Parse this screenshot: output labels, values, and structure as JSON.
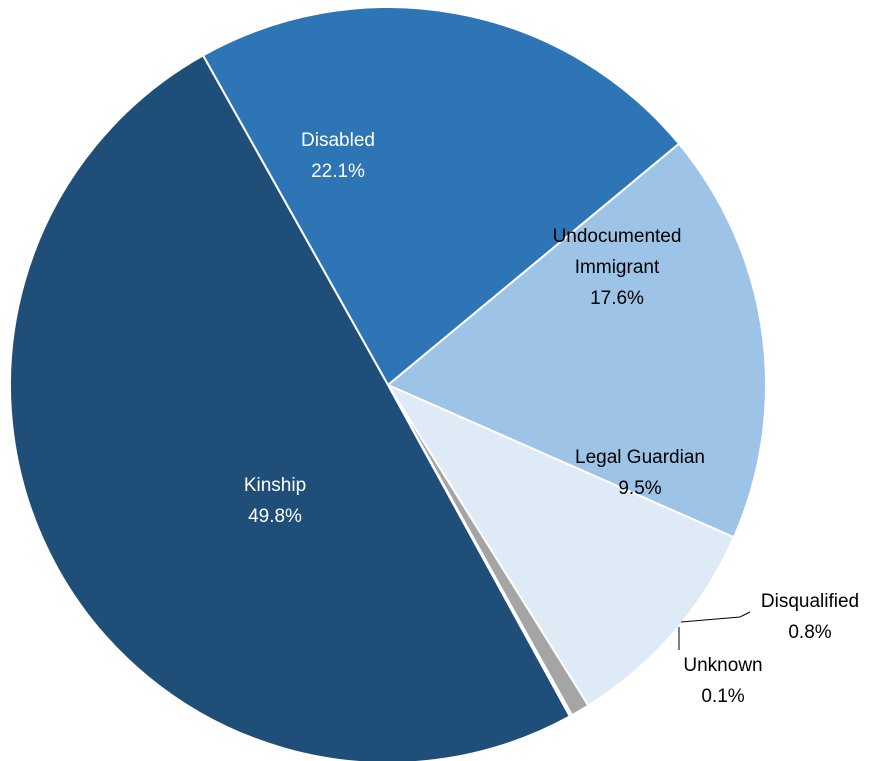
{
  "chart_data": {
    "type": "pie",
    "title": "",
    "start_angle_deg": 330.7,
    "direction": "clockwise",
    "slices": [
      {
        "name": "Disabled",
        "value_label": "22.1%",
        "value": 22.1,
        "color": "#2E75B6",
        "text_color": "#ffffff"
      },
      {
        "name": "Undocumented Immigrant",
        "value_label": "17.6%",
        "value": 17.6,
        "color": "#9DC3E6",
        "text_color": "#000000"
      },
      {
        "name": "Legal Guardian",
        "value_label": "9.5%",
        "value": 9.5,
        "color": "#DEEBF7",
        "text_color": "#000000"
      },
      {
        "name": "Disqualified",
        "value_label": "0.8%",
        "value": 0.8,
        "color": "#A5A5A5",
        "text_color": "#000000"
      },
      {
        "name": "Unknown",
        "value_label": "0.1%",
        "value": 0.1,
        "color": "#BFBFBF",
        "text_color": "#000000"
      },
      {
        "name": "Kinship",
        "value_label": "49.8%",
        "value": 49.8,
        "color": "#1F4E79",
        "text_color": "#ffffff"
      }
    ]
  }
}
